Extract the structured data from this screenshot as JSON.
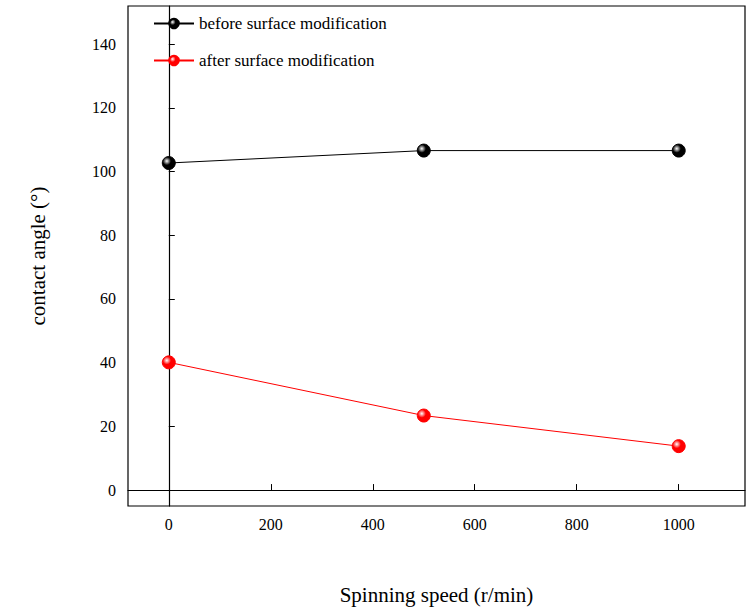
{
  "chart_data": {
    "type": "line",
    "xlabel": "Spinning speed (r/min)",
    "ylabel": "contact angle (°)",
    "x": [
      0,
      500,
      1000
    ],
    "series": [
      {
        "name": "before surface modification",
        "color": "#000000",
        "values": [
          102.7,
          106.6,
          106.6
        ]
      },
      {
        "name": "after surface modification",
        "color": "#ff0000",
        "values": [
          40.1,
          23.4,
          13.8
        ]
      }
    ],
    "xlim": [
      -80,
      1130
    ],
    "xticks": [
      0,
      200,
      400,
      600,
      800,
      1000
    ],
    "ylim": [
      -5,
      152
    ],
    "yticks": [
      0,
      20,
      40,
      60,
      80,
      100,
      120,
      140
    ],
    "grid": false,
    "legend": "upper left",
    "marker": "circle",
    "line_style": "solid"
  }
}
